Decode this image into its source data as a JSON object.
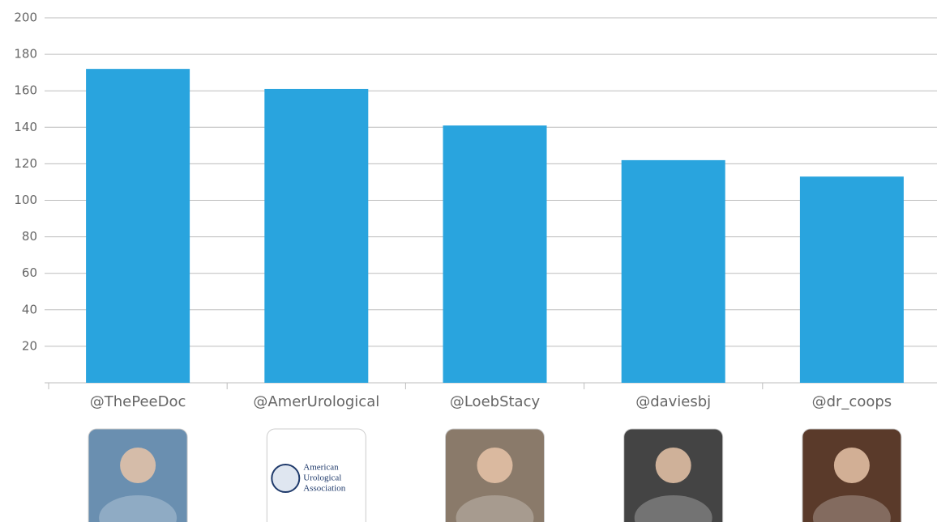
{
  "chart_data": {
    "type": "bar",
    "categories": [
      "@ThePeeDoc",
      "@AmerUrological",
      "@LoebStacy",
      "@daviesbj",
      "@dr_coops"
    ],
    "values": [
      172,
      161,
      141,
      122,
      113
    ],
    "color": "#29a4de",
    "ylim": [
      0,
      200
    ],
    "yticks": [
      20,
      40,
      60,
      80,
      100,
      120,
      140,
      160,
      180,
      200
    ],
    "grid": true
  },
  "logo": {
    "lines": [
      "American",
      "Urological",
      "Association"
    ]
  }
}
